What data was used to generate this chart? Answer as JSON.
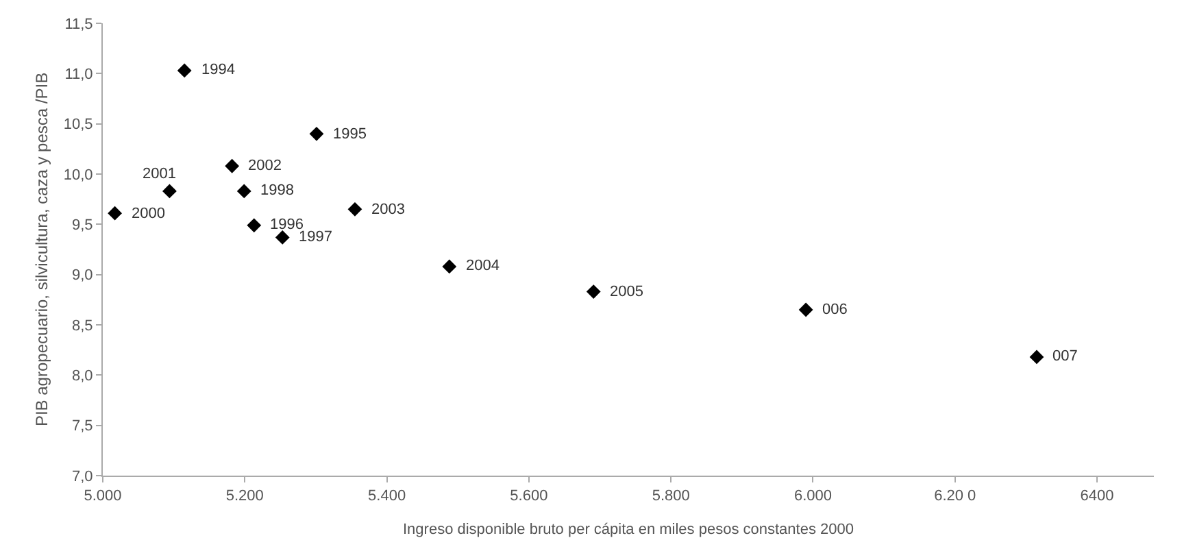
{
  "chart_data": {
    "type": "scatter",
    "xlabel": "Ingreso disponible bruto per cápita en miles pesos constantes 2000",
    "ylabel": "PIB agropecuario, silvicultura, caza y pesca /PIB",
    "x": [
      5115,
      5301,
      5213,
      5253,
      5199,
      5017,
      5094,
      5182,
      5355,
      5488,
      5691,
      5990,
      6315
    ],
    "series": [
      {
        "color": "#000000",
        "values": [
          11.03,
          10.4,
          9.49,
          9.37,
          9.83,
          9.61,
          9.83,
          10.08,
          9.65,
          9.08,
          8.83,
          8.65,
          8.18
        ]
      }
    ],
    "annotations": [
      {
        "text": "1994",
        "x": 5115,
        "y": 11.03
      },
      {
        "text": "1995",
        "x": 5301,
        "y": 10.4
      },
      {
        "text": "1996",
        "x": 5213,
        "y": 9.49
      },
      {
        "text": "1997",
        "x": 5253,
        "y": 9.37
      },
      {
        "text": "1998",
        "x": 5199,
        "y": 9.83
      },
      {
        "text": "2000",
        "x": 5017,
        "y": 9.61
      },
      {
        "text": "2001",
        "x": 5094,
        "y": 9.83
      },
      {
        "text": "2002",
        "x": 5182,
        "y": 10.08
      },
      {
        "text": "2003",
        "x": 5355,
        "y": 9.65
      },
      {
        "text": "2004",
        "x": 5488,
        "y": 9.08
      },
      {
        "text": "2005",
        "x": 5691,
        "y": 8.83
      },
      {
        "text": "006",
        "x": 5990,
        "y": 8.65
      },
      {
        "text": "007",
        "x": 6315,
        "y": 8.18
      }
    ],
    "xlim": [
      5000,
      6480
    ],
    "xticks": [
      {
        "value": 5000,
        "label": "5.000"
      },
      {
        "value": 5200,
        "label": "5.200"
      },
      {
        "value": 5400,
        "label": "5.400"
      },
      {
        "value": 5600,
        "label": "5.600"
      },
      {
        "value": 5800,
        "label": "5.800"
      },
      {
        "value": 6000,
        "label": "6.000"
      },
      {
        "value": 6200,
        "label": "6.20 0"
      },
      {
        "value": 6400,
        "label": "6400"
      }
    ],
    "ylim": [
      7.0,
      11.5
    ],
    "yticks": [
      {
        "value": 7.0,
        "label": "7,0"
      },
      {
        "value": 7.5,
        "label": "7,5"
      },
      {
        "value": 8.0,
        "label": "8,0"
      },
      {
        "value": 8.5,
        "label": "8,5"
      },
      {
        "value": 9.0,
        "label": "9,0"
      },
      {
        "value": 9.5,
        "label": "9,5"
      },
      {
        "value": 10.0,
        "label": "10,0"
      },
      {
        "value": 10.5,
        "label": "10,5"
      },
      {
        "value": 11.0,
        "label": "11,0"
      },
      {
        "value": 11.5,
        "label": "11,5"
      }
    ],
    "marker": "diamond"
  }
}
